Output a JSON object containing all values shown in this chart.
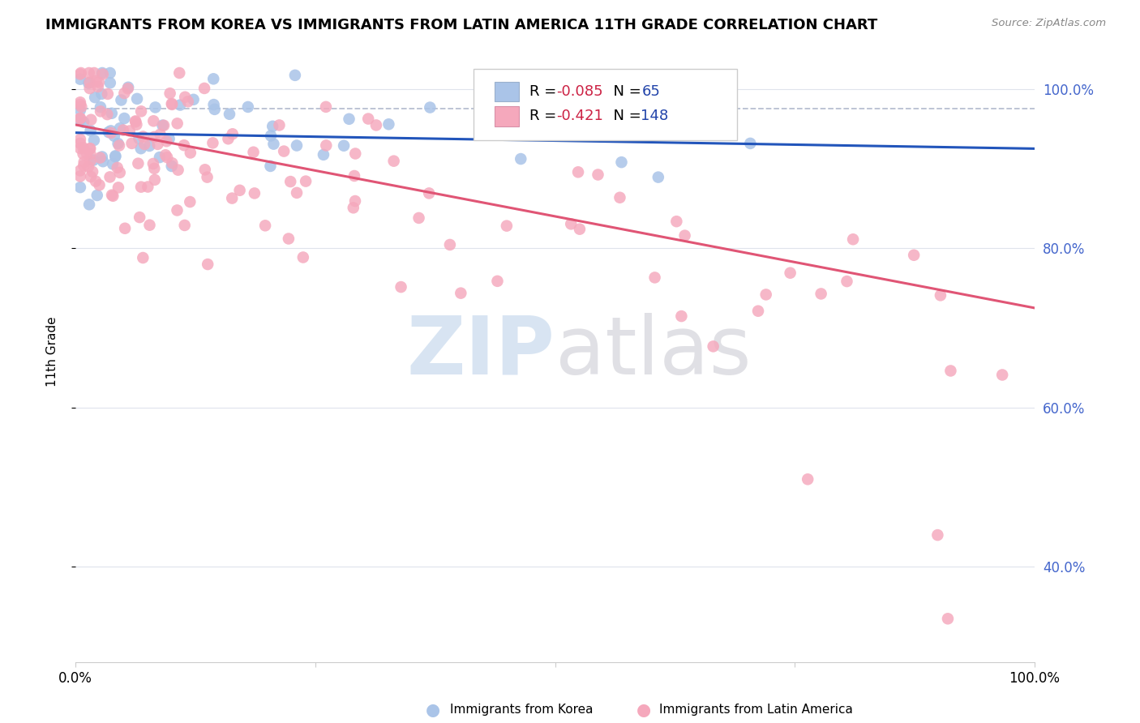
{
  "title": "IMMIGRANTS FROM KOREA VS IMMIGRANTS FROM LATIN AMERICA 11TH GRADE CORRELATION CHART",
  "source": "Source: ZipAtlas.com",
  "ylabel": "11th Grade",
  "korea_color": "#aac4e8",
  "latin_color": "#f5a8bc",
  "korea_line_color": "#2255bb",
  "latin_line_color": "#e05575",
  "dashed_line_color": "#b0b8cc",
  "korea_R": -0.085,
  "korea_N": 65,
  "latin_R": -0.421,
  "latin_N": 148,
  "xlim": [
    0,
    1
  ],
  "ylim": [
    0.28,
    1.06
  ],
  "legend_r_color": "#cc3355",
  "legend_n_color": "#2244aa",
  "right_tick_color": "#4466cc",
  "korea_trend_start_y": 0.945,
  "korea_trend_end_y": 0.925,
  "latin_trend_start_y": 0.955,
  "latin_trend_end_y": 0.725
}
